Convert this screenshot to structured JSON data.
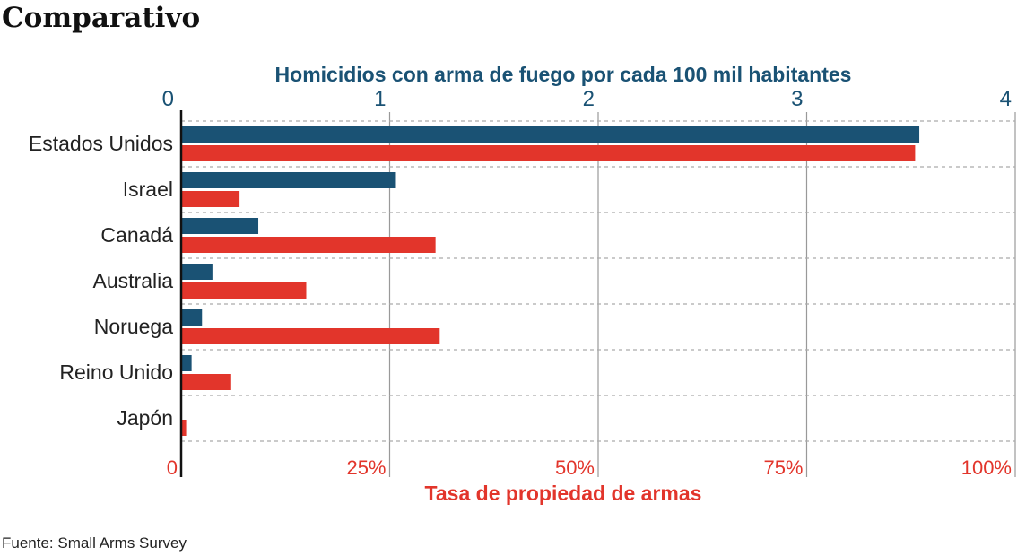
{
  "title": "Comparativo",
  "source": "Fuente: Small Arms Survey",
  "chart_data": {
    "type": "bar",
    "orientation": "horizontal",
    "categories": [
      "Estados Unidos",
      "Israel",
      "Canadá",
      "Australia",
      "Noruega",
      "Reino Unido",
      "Japón"
    ],
    "series": [
      {
        "name": "Homicidios con arma de fuego por cada 100 mil habitantes",
        "axis": "top",
        "color": "#1a5274",
        "values": [
          3.54,
          1.03,
          0.37,
          0.15,
          0.1,
          0.05,
          0.0
        ]
      },
      {
        "name": "Tasa de propiedad de armas",
        "axis": "bottom",
        "color": "#e2352b",
        "values": [
          88,
          7,
          30.5,
          15,
          31,
          6,
          0.6
        ]
      }
    ],
    "top_axis": {
      "label": "Homicidios con arma de fuego por cada 100 mil habitantes",
      "range": [
        0,
        4
      ],
      "ticks": [
        "0",
        "1",
        "2",
        "3",
        "4"
      ]
    },
    "bottom_axis": {
      "label": "Tasa de propiedad de armas",
      "range": [
        0,
        100
      ],
      "ticks": [
        "0",
        "25%",
        "50%",
        "75%",
        "100%"
      ]
    },
    "grid": true
  }
}
